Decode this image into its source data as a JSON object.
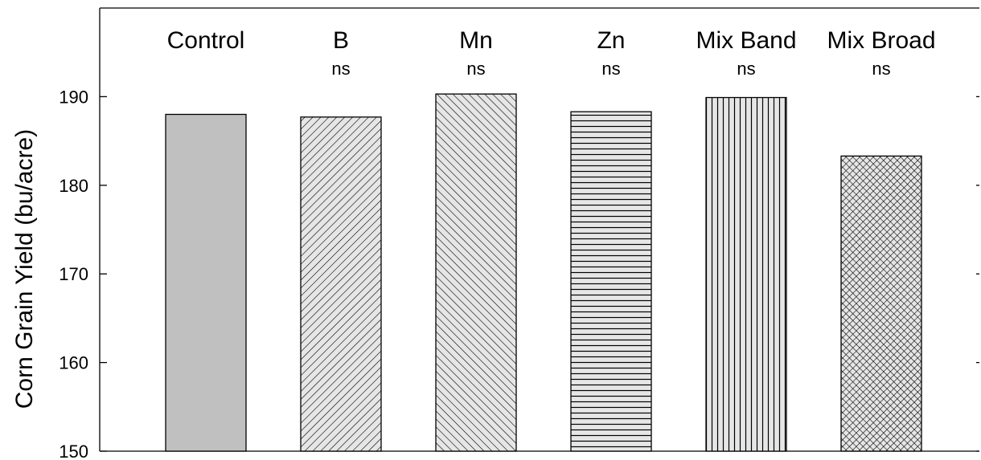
{
  "chart_data": {
    "type": "bar",
    "categories": [
      "Control",
      "B",
      "Mn",
      "Zn",
      "Mix Band",
      "Mix Broad"
    ],
    "values": [
      188.0,
      187.7,
      190.3,
      188.3,
      189.9,
      183.3
    ],
    "significance": [
      "",
      "ns",
      "ns",
      "ns",
      "ns",
      "ns"
    ],
    "patterns": [
      "solid-gray",
      "diagonal-forward",
      "diagonal-back",
      "horizontal",
      "vertical",
      "crosshatch"
    ],
    "title": "",
    "xlabel": "",
    "ylabel": "Corn Grain Yield (bu/acre)",
    "ylim": [
      150,
      200
    ],
    "yticks": [
      150,
      160,
      170,
      180,
      190
    ],
    "grid": false,
    "colors": {
      "bar_fill": "#c0c0c0",
      "pattern_bg": "#e6e6e6",
      "pattern_line": "#000000",
      "axis": "#000000"
    }
  }
}
